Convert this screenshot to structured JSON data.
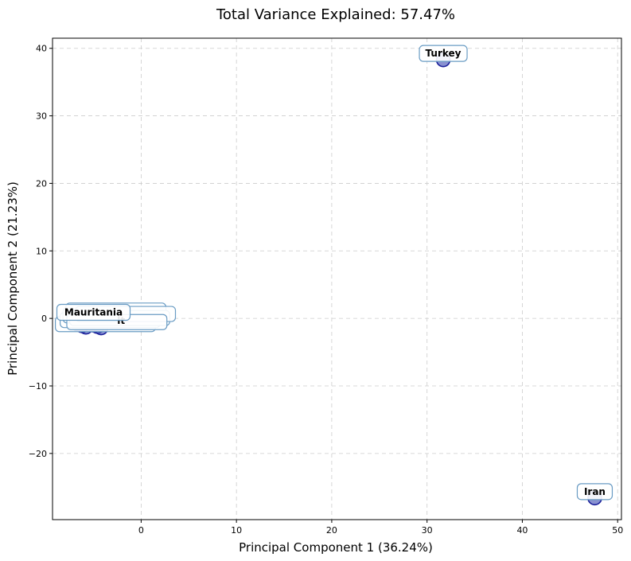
{
  "chart_data": {
    "type": "scatter",
    "title": "Total Variance Explained: 57.47%",
    "xlabel": "Principal Component 1 (36.24%)",
    "ylabel": "Principal Component 2 (21.23%)",
    "xlim": [
      -9.3,
      50.4
    ],
    "ylim": [
      -29.8,
      41.5
    ],
    "xticks": [
      0,
      10,
      20,
      30,
      40,
      50
    ],
    "yticks": [
      -20,
      -10,
      0,
      10,
      20,
      30,
      40
    ],
    "grid": true,
    "point_color": "#4a56b8",
    "point_edge_color": "#1a1f9a",
    "label_box_edge": "#6a9cc4",
    "label_box_fill": "#ffffff",
    "points": [
      {
        "label": "Turkey",
        "x": 31.7,
        "y": 38.3
      },
      {
        "label": "Iran",
        "x": 47.6,
        "y": -26.6
      },
      {
        "label": "Mauritania",
        "x": -5.0,
        "y": -1.0
      },
      {
        "label": "",
        "x": -6.6,
        "y": -0.9
      },
      {
        "label": "",
        "x": -5.8,
        "y": -1.3
      },
      {
        "label": "",
        "x": -4.6,
        "y": -1.2
      },
      {
        "label": "",
        "x": -4.2,
        "y": -1.4
      },
      {
        "label": "",
        "x": -5.4,
        "y": -0.7
      },
      {
        "label": "",
        "x": -6.2,
        "y": -1.1
      }
    ],
    "partial_labels": [
      "lt"
    ]
  }
}
